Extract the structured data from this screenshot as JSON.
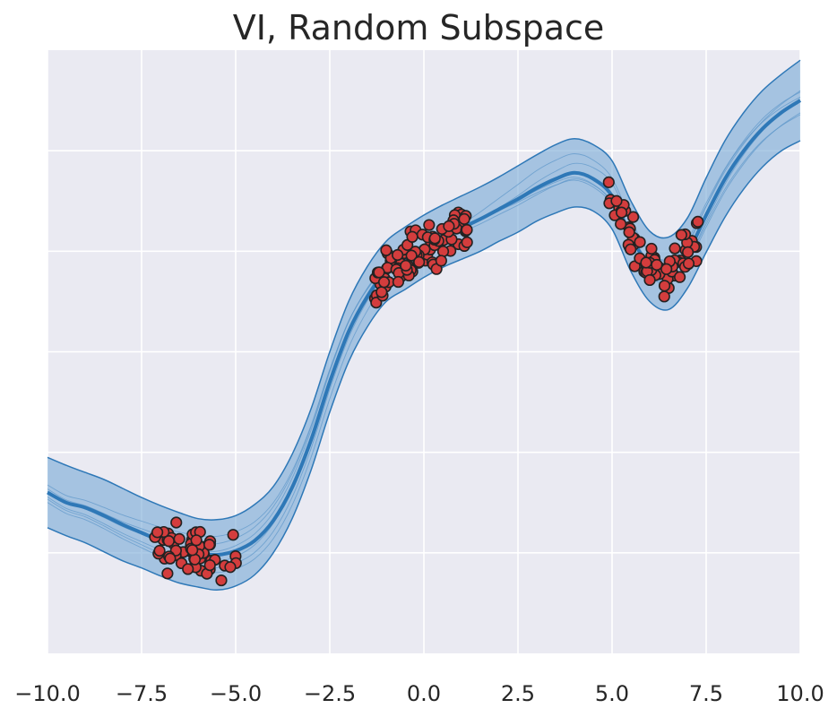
{
  "chart_data": {
    "type": "line",
    "title": "VI, Random Subspace",
    "xlabel": "",
    "ylabel": "",
    "xlim": [
      -10,
      10
    ],
    "ylim": [
      -3.0,
      3.0
    ],
    "x_ticks": [
      -10,
      -7.5,
      -5,
      -2.5,
      0,
      2.5,
      5,
      7.5,
      10
    ],
    "x_tick_labels": [
      "−10.0",
      "−7.5",
      "−5.0",
      "−2.5",
      "0.0",
      "2.5",
      "5.0",
      "7.5",
      "10.0"
    ],
    "y_gridlines": [
      -2,
      -1,
      0,
      1,
      2
    ],
    "y_tick_labels_visible": false,
    "grid": true,
    "style": "seaborn-darkgrid",
    "colors": {
      "background": "#eaeaf2",
      "grid": "#ffffff",
      "band_fill": "#7aabd6",
      "band_edge": "#2e78b7",
      "mean_line": "#2e78b7",
      "sample_lines": "#5b95c9",
      "point_fill": "#d43d3d",
      "point_edge": "#222222"
    },
    "series": [
      {
        "kind": "predictive_mean",
        "x": [
          -10,
          -9.5,
          -9,
          -8.5,
          -8,
          -7.5,
          -7,
          -6.5,
          -6,
          -5.5,
          -5,
          -4.5,
          -4,
          -3.5,
          -3,
          -2.5,
          -2,
          -1.5,
          -1,
          -0.5,
          0,
          0.5,
          1,
          1.5,
          2,
          2.5,
          3,
          3.5,
          4,
          4.5,
          5,
          5.5,
          6,
          6.5,
          7,
          7.5,
          8,
          8.5,
          9,
          9.5,
          10
        ],
        "y": [
          -1.4,
          -1.5,
          -1.55,
          -1.63,
          -1.72,
          -1.8,
          -1.88,
          -1.95,
          -2.0,
          -2.02,
          -1.98,
          -1.88,
          -1.68,
          -1.35,
          -0.88,
          -0.3,
          0.2,
          0.55,
          0.8,
          0.92,
          1.04,
          1.14,
          1.23,
          1.32,
          1.42,
          1.52,
          1.63,
          1.72,
          1.78,
          1.72,
          1.55,
          1.15,
          0.85,
          0.78,
          0.98,
          1.36,
          1.72,
          2.0,
          2.22,
          2.38,
          2.5
        ]
      },
      {
        "kind": "credible_band",
        "x": [
          -10,
          -9.5,
          -9,
          -8.5,
          -8,
          -7.5,
          -7,
          -6.5,
          -6,
          -5.5,
          -5,
          -4.5,
          -4,
          -3.5,
          -3,
          -2.5,
          -2,
          -1.5,
          -1,
          -0.5,
          0,
          0.5,
          1,
          1.5,
          2,
          2.5,
          3,
          3.5,
          4,
          4.5,
          5,
          5.5,
          6,
          6.5,
          7,
          7.5,
          8,
          8.5,
          9,
          9.5,
          10
        ],
        "lower": [
          -1.75,
          -1.83,
          -1.9,
          -1.99,
          -2.08,
          -2.15,
          -2.23,
          -2.3,
          -2.34,
          -2.37,
          -2.33,
          -2.22,
          -2.0,
          -1.66,
          -1.18,
          -0.6,
          -0.1,
          0.25,
          0.5,
          0.62,
          0.74,
          0.84,
          0.92,
          1.0,
          1.1,
          1.19,
          1.3,
          1.38,
          1.44,
          1.4,
          1.22,
          0.8,
          0.5,
          0.42,
          0.63,
          0.99,
          1.34,
          1.62,
          1.84,
          2.0,
          2.1
        ],
        "upper": [
          -1.05,
          -1.13,
          -1.2,
          -1.27,
          -1.36,
          -1.45,
          -1.53,
          -1.6,
          -1.66,
          -1.67,
          -1.63,
          -1.52,
          -1.34,
          -1.02,
          -0.57,
          0.0,
          0.5,
          0.85,
          1.1,
          1.24,
          1.36,
          1.46,
          1.55,
          1.64,
          1.74,
          1.85,
          1.96,
          2.06,
          2.12,
          2.06,
          1.9,
          1.5,
          1.2,
          1.14,
          1.33,
          1.73,
          2.1,
          2.38,
          2.6,
          2.76,
          2.9
        ]
      }
    ],
    "observations": {
      "clusters": [
        {
          "x_range": [
            -7.2,
            -4.9
          ],
          "points": 60
        },
        {
          "x_range": [
            -1.3,
            1.2
          ],
          "points": 90
        },
        {
          "x_range": [
            4.9,
            7.3
          ],
          "points": 75
        }
      ]
    }
  }
}
